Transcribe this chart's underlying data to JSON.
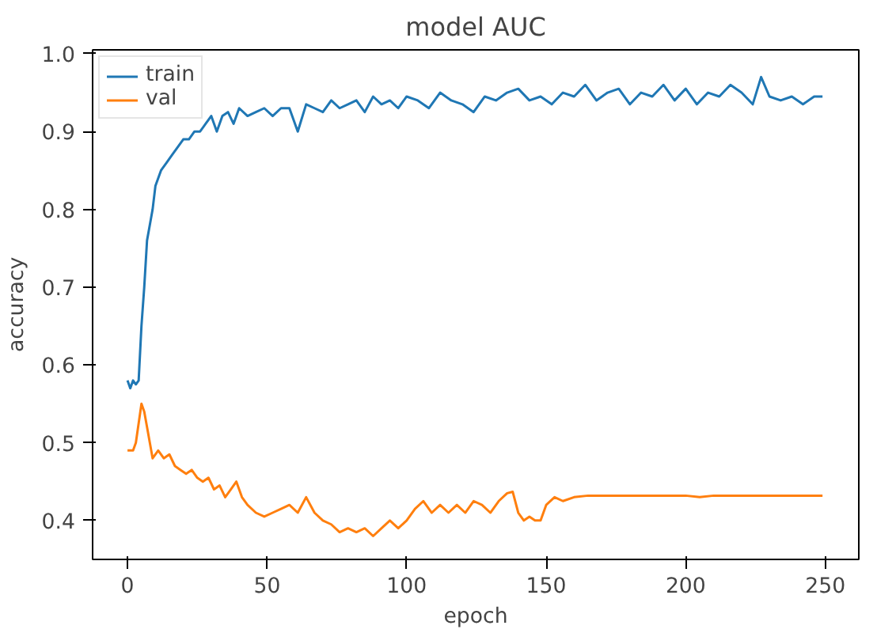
{
  "chart_data": {
    "type": "line",
    "title": "model AUC",
    "xlabel": "epoch",
    "ylabel": "accuracy",
    "xlim": [
      -12.5,
      262
    ],
    "ylim": [
      0.35,
      1.005
    ],
    "xticks": [
      0,
      50,
      100,
      150,
      200,
      250
    ],
    "yticks": [
      {
        "value": 0.4,
        "label": "0.4"
      },
      {
        "value": 0.5,
        "label": "0.5"
      },
      {
        "value": 0.6,
        "label": "0.6"
      },
      {
        "value": 0.7,
        "label": "0.7"
      },
      {
        "value": 0.8,
        "label": "0.8"
      },
      {
        "value": 0.9,
        "label": "0.9"
      },
      {
        "value": 1.0,
        "label": "1.0"
      }
    ],
    "legend": "top left",
    "grid": false,
    "series": [
      {
        "name": "train",
        "color": "#1f77b4",
        "x": [
          0,
          1,
          2,
          3,
          4,
          5,
          6,
          7,
          8,
          9,
          10,
          12,
          14,
          16,
          18,
          20,
          22,
          24,
          26,
          28,
          30,
          32,
          34,
          36,
          38,
          40,
          43,
          46,
          49,
          52,
          55,
          58,
          61,
          64,
          67,
          70,
          73,
          76,
          79,
          82,
          85,
          88,
          91,
          94,
          97,
          100,
          104,
          108,
          112,
          116,
          120,
          124,
          128,
          132,
          136,
          140,
          144,
          148,
          152,
          156,
          160,
          164,
          168,
          172,
          176,
          180,
          184,
          188,
          192,
          196,
          200,
          204,
          208,
          212,
          216,
          220,
          224,
          227,
          230,
          234,
          238,
          242,
          246,
          249
        ],
        "values": [
          0.58,
          0.57,
          0.58,
          0.575,
          0.58,
          0.65,
          0.7,
          0.76,
          0.78,
          0.8,
          0.83,
          0.85,
          0.86,
          0.87,
          0.88,
          0.89,
          0.89,
          0.9,
          0.9,
          0.91,
          0.92,
          0.9,
          0.92,
          0.925,
          0.91,
          0.93,
          0.92,
          0.925,
          0.93,
          0.92,
          0.93,
          0.93,
          0.9,
          0.935,
          0.93,
          0.925,
          0.94,
          0.93,
          0.935,
          0.94,
          0.925,
          0.945,
          0.935,
          0.94,
          0.93,
          0.945,
          0.94,
          0.93,
          0.95,
          0.94,
          0.935,
          0.925,
          0.945,
          0.94,
          0.95,
          0.955,
          0.94,
          0.945,
          0.935,
          0.95,
          0.945,
          0.96,
          0.94,
          0.95,
          0.955,
          0.935,
          0.95,
          0.945,
          0.96,
          0.94,
          0.955,
          0.935,
          0.95,
          0.945,
          0.96,
          0.95,
          0.935,
          0.97,
          0.945,
          0.94,
          0.945,
          0.935,
          0.945,
          0.945
        ]
      },
      {
        "name": "val",
        "color": "#ff7f0e",
        "x": [
          0,
          2,
          3,
          5,
          6,
          7,
          8,
          9,
          11,
          13,
          15,
          17,
          19,
          21,
          23,
          25,
          27,
          29,
          31,
          33,
          35,
          37,
          39,
          41,
          43,
          46,
          49,
          52,
          55,
          58,
          61,
          64,
          67,
          70,
          73,
          76,
          79,
          82,
          85,
          88,
          91,
          94,
          97,
          100,
          103,
          106,
          109,
          112,
          115,
          118,
          121,
          124,
          127,
          130,
          133,
          136,
          138,
          140,
          142,
          144,
          146,
          148,
          150,
          153,
          156,
          160,
          165,
          170,
          180,
          190,
          200,
          205,
          210,
          220,
          230,
          240,
          249
        ],
        "values": [
          0.49,
          0.49,
          0.5,
          0.55,
          0.54,
          0.52,
          0.5,
          0.48,
          0.49,
          0.48,
          0.485,
          0.47,
          0.465,
          0.46,
          0.465,
          0.455,
          0.45,
          0.455,
          0.44,
          0.445,
          0.43,
          0.44,
          0.45,
          0.43,
          0.42,
          0.41,
          0.405,
          0.41,
          0.415,
          0.42,
          0.41,
          0.43,
          0.41,
          0.4,
          0.395,
          0.385,
          0.39,
          0.385,
          0.39,
          0.38,
          0.39,
          0.4,
          0.39,
          0.4,
          0.415,
          0.425,
          0.41,
          0.42,
          0.41,
          0.42,
          0.41,
          0.425,
          0.42,
          0.41,
          0.425,
          0.435,
          0.437,
          0.41,
          0.4,
          0.405,
          0.4,
          0.4,
          0.42,
          0.43,
          0.425,
          0.43,
          0.432,
          0.432,
          0.432,
          0.432,
          0.432,
          0.43,
          0.432,
          0.432,
          0.432,
          0.432,
          0.432
        ]
      }
    ]
  }
}
